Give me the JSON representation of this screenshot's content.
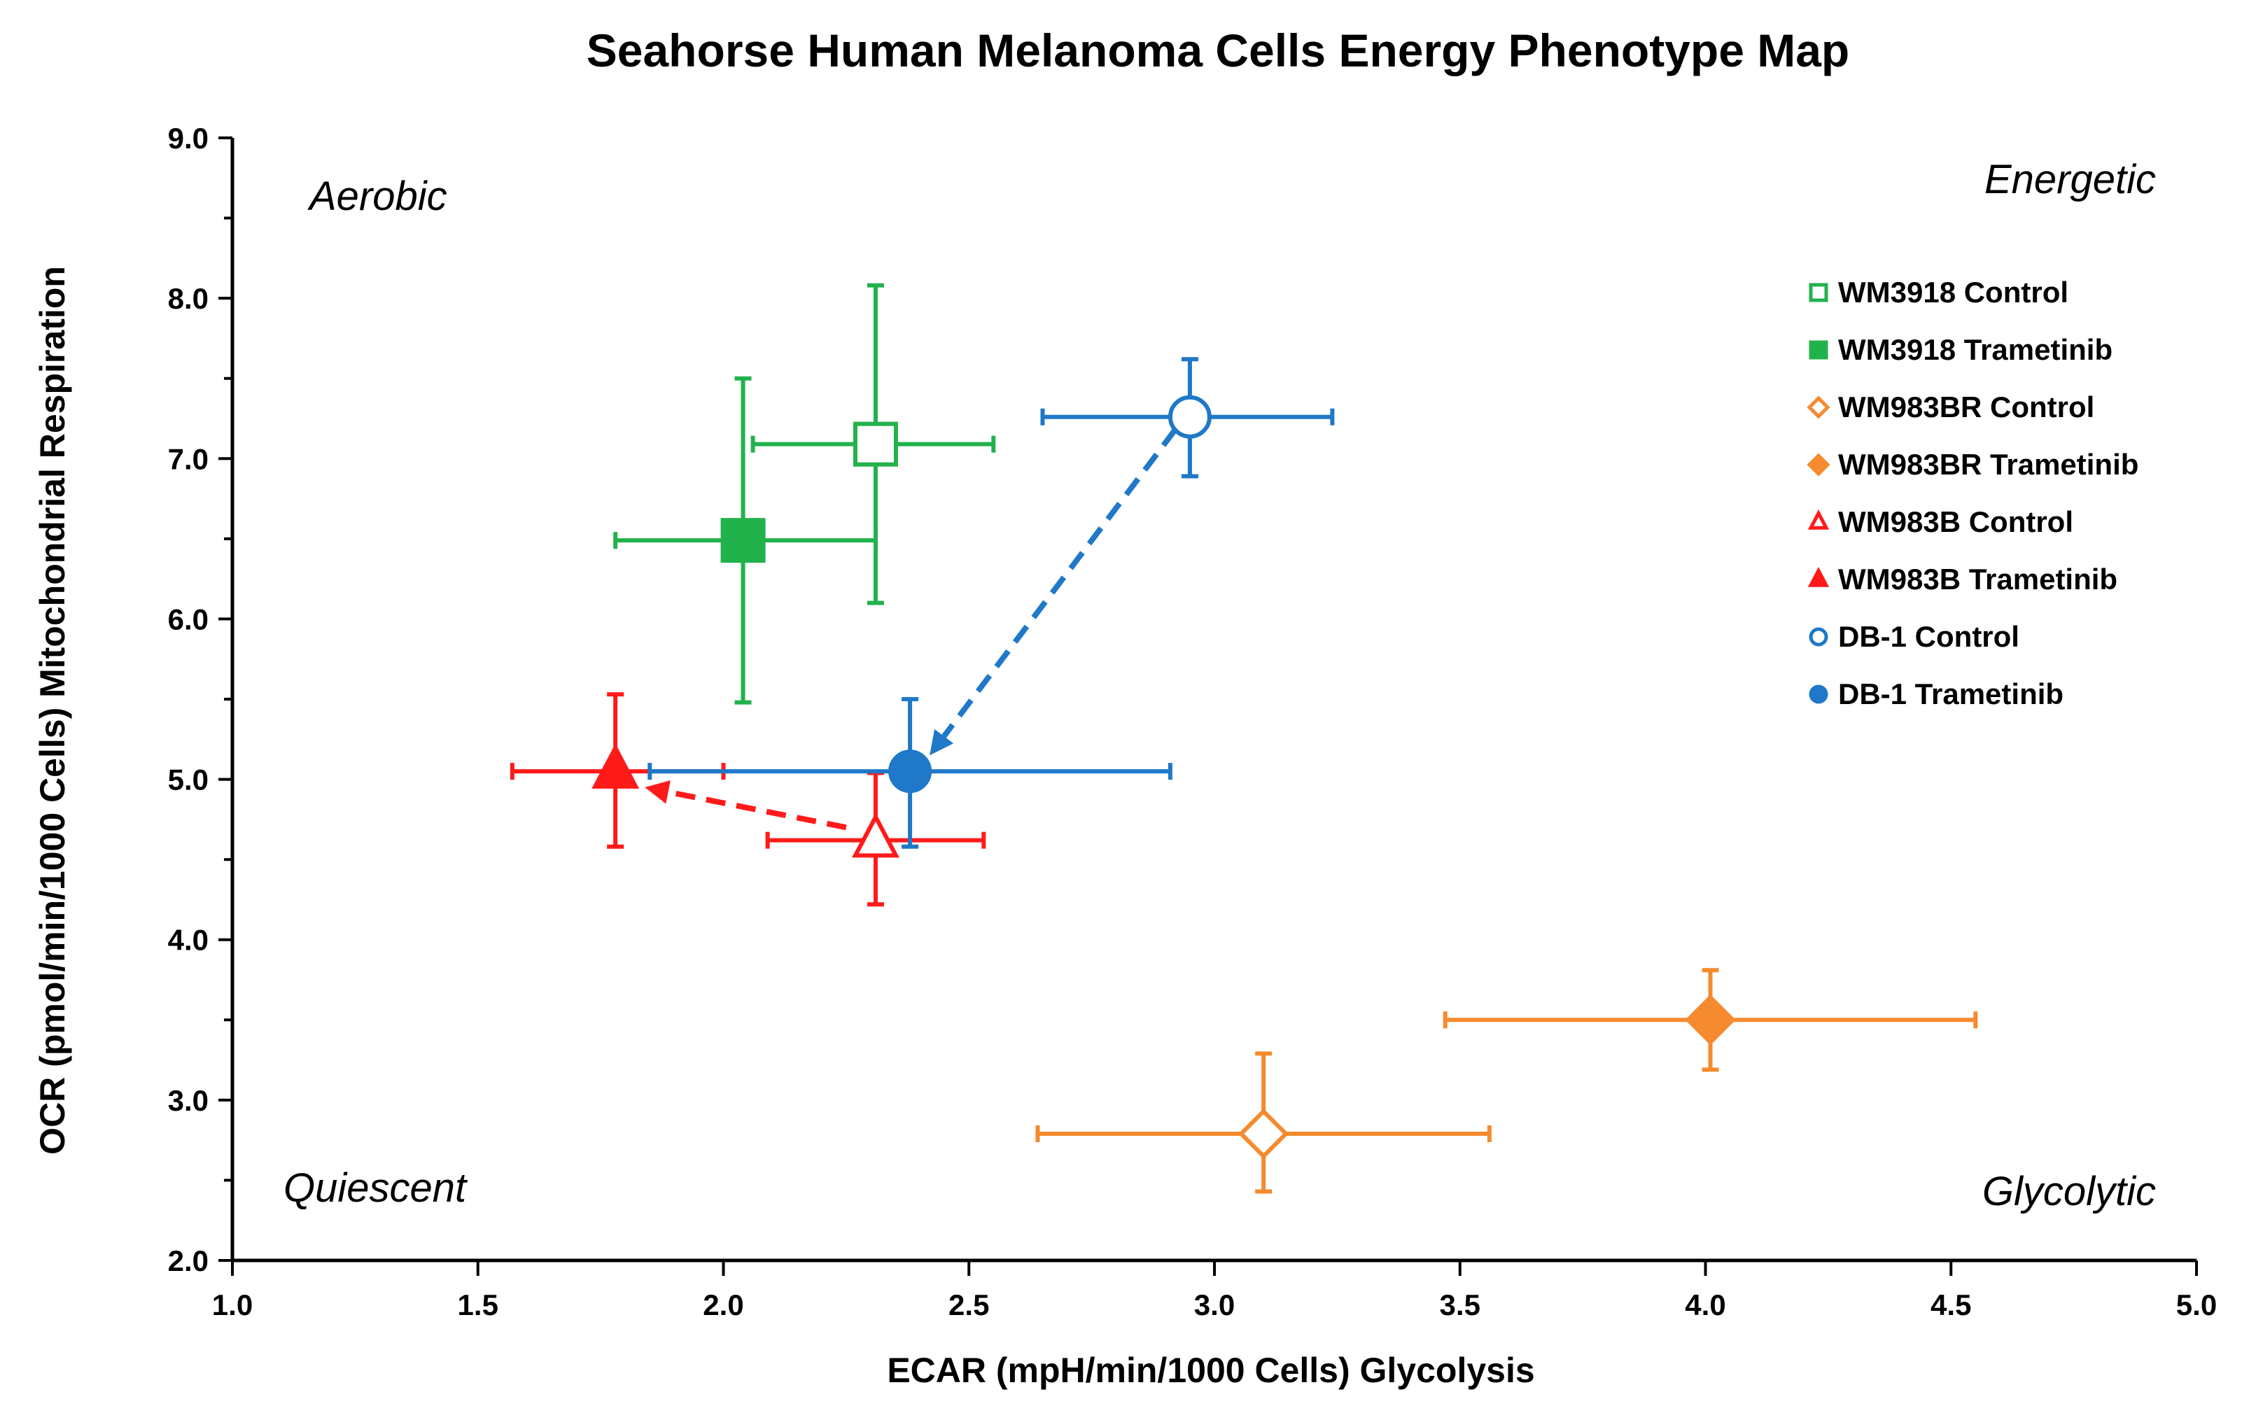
{
  "chart_data": {
    "type": "scatter",
    "title": "Seahorse Human Melanoma Cells Energy Phenotype Map",
    "xlabel": "ECAR (mpH/min/1000 Cells) Glycolysis",
    "ylabel": "OCR (pmol/min/1000 Cells) Mitochondrial Respiration",
    "xlim": [
      1.0,
      5.0
    ],
    "ylim": [
      2.0,
      9.0
    ],
    "x_ticks": [
      "1.0",
      "1.5",
      "2.0",
      "2.5",
      "3.0",
      "3.5",
      "4.0",
      "4.5",
      "5.0"
    ],
    "y_ticks": [
      "2.0",
      "3.0",
      "4.0",
      "5.0",
      "6.0",
      "7.0",
      "8.0",
      "9.0"
    ],
    "grid": false,
    "legend_position": "right",
    "quadrant_labels": {
      "top_left": "Aerobic",
      "top_right": "Energetic",
      "bottom_left": "Quiescent",
      "bottom_right": "Glycolytic"
    },
    "series": [
      {
        "name": "WM3918 Control",
        "color": "#22b24c",
        "marker": "square",
        "filled": false,
        "x": 2.31,
        "y": 7.09,
        "xerr": [
          2.06,
          2.55
        ],
        "yerr": [
          6.1,
          8.08
        ]
      },
      {
        "name": "WM3918 Trametinib",
        "color": "#22b24c",
        "marker": "square",
        "filled": true,
        "x": 2.04,
        "y": 6.49,
        "xerr": [
          1.78,
          2.31
        ],
        "yerr": [
          5.48,
          7.5
        ]
      },
      {
        "name": "WM983BR Control",
        "color": "#f58a2e",
        "marker": "diamond",
        "filled": false,
        "x": 3.1,
        "y": 2.79,
        "xerr": [
          2.64,
          3.56
        ],
        "yerr": [
          2.43,
          3.29
        ]
      },
      {
        "name": "WM983BR Trametinib",
        "color": "#f58a2e",
        "marker": "diamond",
        "filled": true,
        "x": 4.01,
        "y": 3.5,
        "xerr": [
          3.47,
          4.55
        ],
        "yerr": [
          3.19,
          3.81
        ]
      },
      {
        "name": "WM983B Control",
        "color": "#ff1a1a",
        "marker": "triangle",
        "filled": false,
        "x": 2.31,
        "y": 4.62,
        "xerr": [
          2.09,
          2.53
        ],
        "yerr": [
          4.22,
          5.04
        ]
      },
      {
        "name": "WM983B Trametinib",
        "color": "#ff1a1a",
        "marker": "triangle",
        "filled": true,
        "x": 1.78,
        "y": 5.05,
        "xerr": [
          1.57,
          2.0
        ],
        "yerr": [
          4.58,
          5.53
        ]
      },
      {
        "name": "DB-1 Control",
        "color": "#1f78c8",
        "marker": "circle",
        "filled": false,
        "x": 2.95,
        "y": 7.26,
        "xerr": [
          2.65,
          3.24
        ],
        "yerr": [
          6.89,
          7.62
        ]
      },
      {
        "name": "DB-1 Trametinib",
        "color": "#1f78c8",
        "marker": "circle",
        "filled": true,
        "x": 2.38,
        "y": 5.05,
        "xerr": [
          1.85,
          2.91
        ],
        "yerr": [
          4.58,
          5.5
        ]
      }
    ],
    "arrows": [
      {
        "color": "#1f78c8",
        "from": [
          2.92,
          7.18
        ],
        "to": [
          2.42,
          5.15
        ]
      },
      {
        "color": "#ff1a1a",
        "from": [
          2.25,
          4.7
        ],
        "to": [
          1.84,
          4.95
        ]
      }
    ]
  }
}
